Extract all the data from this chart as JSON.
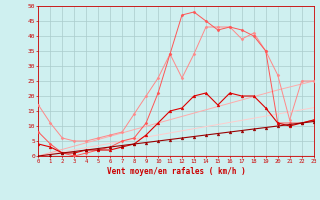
{
  "xlabel": "Vent moyen/en rafales ( km/h )",
  "background_color": "#cff0f0",
  "grid_color": "#aacccc",
  "text_color": "#cc0000",
  "x": [
    0,
    1,
    2,
    3,
    4,
    5,
    6,
    7,
    8,
    9,
    10,
    11,
    12,
    13,
    14,
    15,
    16,
    17,
    18,
    19,
    20,
    21,
    22,
    23
  ],
  "ylim": [
    0,
    50
  ],
  "xlim": [
    0,
    23
  ],
  "yticks": [
    0,
    5,
    10,
    15,
    20,
    25,
    30,
    35,
    40,
    45,
    50
  ],
  "series": [
    {
      "color": "#ff8888",
      "linewidth": 0.7,
      "marker": "D",
      "markersize": 1.5,
      "values": [
        17,
        11,
        6,
        5,
        5,
        6,
        7,
        8,
        14,
        20,
        26,
        34,
        26,
        34,
        43,
        43,
        43,
        39,
        41,
        35,
        27,
        12,
        25,
        25
      ]
    },
    {
      "color": "#ff5555",
      "linewidth": 0.7,
      "marker": "D",
      "markersize": 1.5,
      "values": [
        8,
        4,
        1,
        0,
        1,
        2,
        3,
        5,
        6,
        11,
        21,
        34,
        47,
        48,
        45,
        42,
        43,
        42,
        40,
        35,
        11,
        11,
        11,
        12
      ]
    },
    {
      "color": "#ffaaaa",
      "linewidth": 0.7,
      "marker": null,
      "values": [
        0,
        1.1,
        2.2,
        3.3,
        4.4,
        5.5,
        6.6,
        7.7,
        8.8,
        9.9,
        11,
        12.1,
        13.2,
        14.3,
        15.4,
        16.5,
        17.6,
        18.7,
        19.8,
        20.9,
        22,
        23,
        24,
        25
      ]
    },
    {
      "color": "#ffcccc",
      "linewidth": 0.7,
      "marker": null,
      "values": [
        0,
        0.7,
        1.4,
        2.1,
        2.8,
        3.5,
        4.2,
        4.9,
        5.6,
        6.3,
        7.0,
        7.7,
        8.4,
        9.1,
        9.8,
        10.5,
        11.2,
        11.9,
        12.6,
        13.3,
        14.0,
        14.7,
        15.4,
        16.1
      ]
    },
    {
      "color": "#dd0000",
      "linewidth": 0.8,
      "marker": "^",
      "markersize": 2.0,
      "values": [
        4,
        3,
        1,
        1,
        2,
        2,
        2,
        3,
        4,
        7,
        11,
        15,
        16,
        20,
        21,
        17,
        21,
        20,
        20,
        16,
        11,
        10,
        11,
        12
      ]
    },
    {
      "color": "#990000",
      "linewidth": 0.8,
      "marker": "^",
      "markersize": 2.0,
      "values": [
        0,
        0.5,
        1.0,
        1.5,
        2.0,
        2.5,
        3.0,
        3.5,
        4.0,
        4.5,
        5.0,
        5.5,
        6.0,
        6.5,
        7.0,
        7.5,
        8.0,
        8.5,
        9.0,
        9.5,
        10.0,
        10.5,
        11.0,
        11.5
      ]
    }
  ]
}
